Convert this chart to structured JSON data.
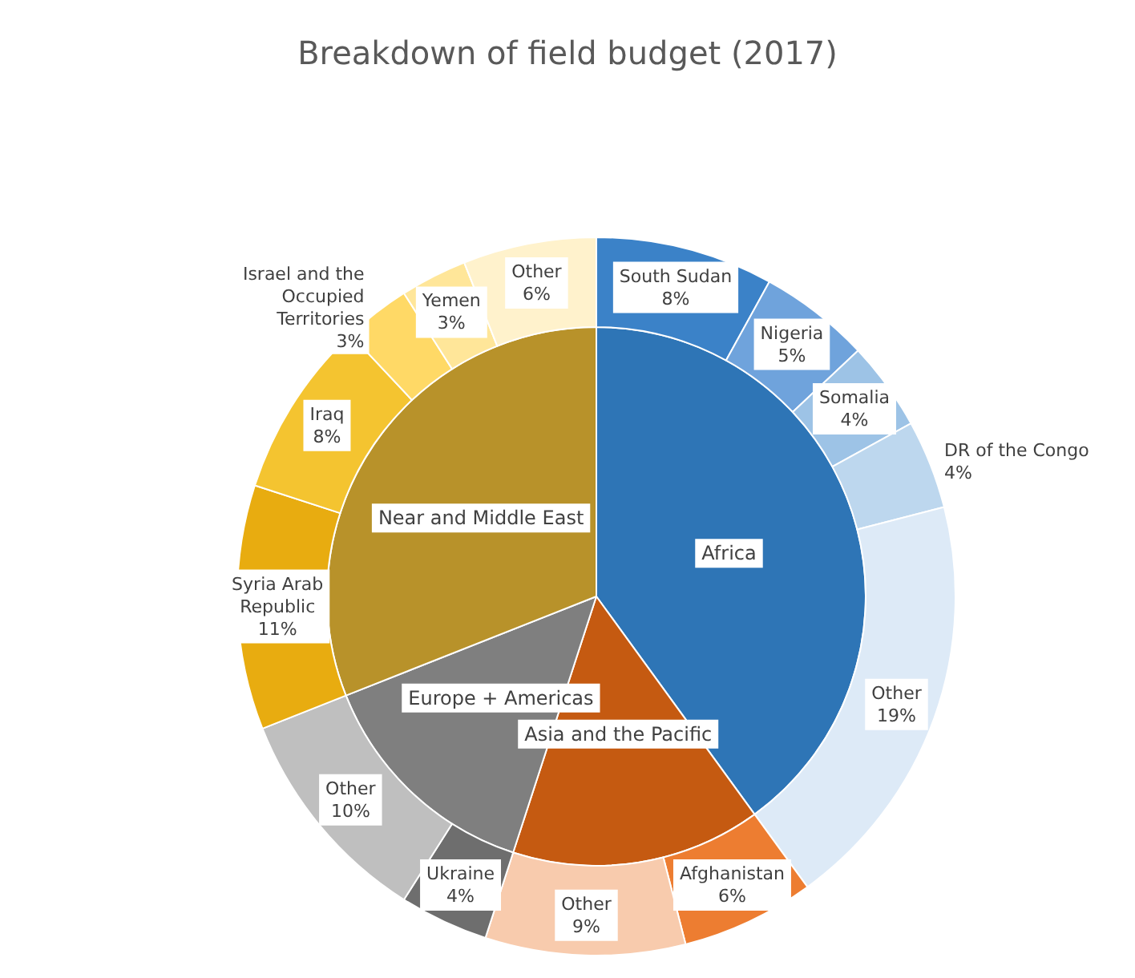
{
  "chart_data": [
    {
      "type": "pie",
      "title": "Breakdown of field budget (2017)",
      "categories": [
        "Africa",
        "Asia and the Pacific",
        "Europe + Americas",
        "Near and Middle East"
      ],
      "values": [
        40,
        15,
        14,
        31
      ],
      "colors": [
        "#2e75b6",
        "#c55a11",
        "#7f7f7f",
        "#b8922a"
      ]
    },
    {
      "type": "donut",
      "categories": [
        "South Sudan",
        "Nigeria",
        "Somalia",
        "DR of the Congo",
        "Other",
        "Afghanistan",
        "Other",
        "Ukraine",
        "Other",
        "Syria Arab Republic",
        "Iraq",
        "Israel and the Occupied Territories",
        "Yemen",
        "Other"
      ],
      "values": [
        8,
        5,
        4,
        4,
        19,
        6,
        9,
        4,
        10,
        11,
        8,
        3,
        3,
        6
      ],
      "value_labels": [
        "8%",
        "5%",
        "4%",
        "4%",
        "19%",
        "6%",
        "9%",
        "4%",
        "10%",
        "11%",
        "8%",
        "3%",
        "3%",
        "6%"
      ],
      "colors": [
        "#3b82c8",
        "#6fa3dc",
        "#9dc3e6",
        "#bdd7ee",
        "#ddeaf7",
        "#ed7d31",
        "#f8cbad",
        "#6e6e6e",
        "#bfbfbf",
        "#e8ac10",
        "#f4c430",
        "#ffd966",
        "#ffe699",
        "#fff2cc"
      ]
    }
  ]
}
